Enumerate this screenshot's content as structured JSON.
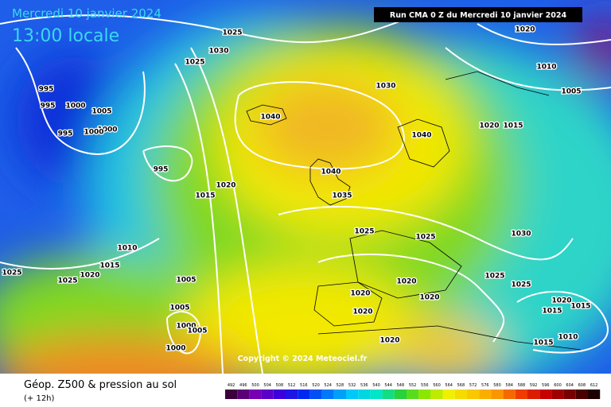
{
  "header": {
    "date": "Mercredi 10 janvier 2024",
    "time": "13:00 locale",
    "run": "Run CMA 0 Z du Mercredi 10 janvier 2024"
  },
  "footer": {
    "title": "Géop. Z500 & pression au sol",
    "subtitle": "(+ 12h)",
    "copyright": "Copyright © 2024 Meteociel.fr"
  },
  "scale": {
    "labels": [
      492,
      496,
      500,
      504,
      508,
      512,
      516,
      520,
      524,
      528,
      532,
      536,
      540,
      544,
      548,
      552,
      556,
      560,
      564,
      568,
      572,
      576,
      580,
      584,
      588,
      592,
      596,
      600,
      604,
      608,
      612
    ]
  },
  "isobars": {
    "labels": [
      "1025",
      "1025",
      "1030",
      "1030",
      "1020",
      "1010",
      "1005",
      "995",
      "995",
      "1000",
      "1005",
      "1000",
      "1000",
      "995",
      "1040",
      "1040",
      "1020",
      "1015",
      "995",
      "1040",
      "1035",
      "1020",
      "1015",
      "1025",
      "1025",
      "1030",
      "1010",
      "1015",
      "1025",
      "1025",
      "1020",
      "1005",
      "1020",
      "1025",
      "1025",
      "1020",
      "1020",
      "1005",
      "1020",
      "1020",
      "1015",
      "1015",
      "1000",
      "1005",
      "1000",
      "1020",
      "1015",
      "1010"
    ]
  }
}
